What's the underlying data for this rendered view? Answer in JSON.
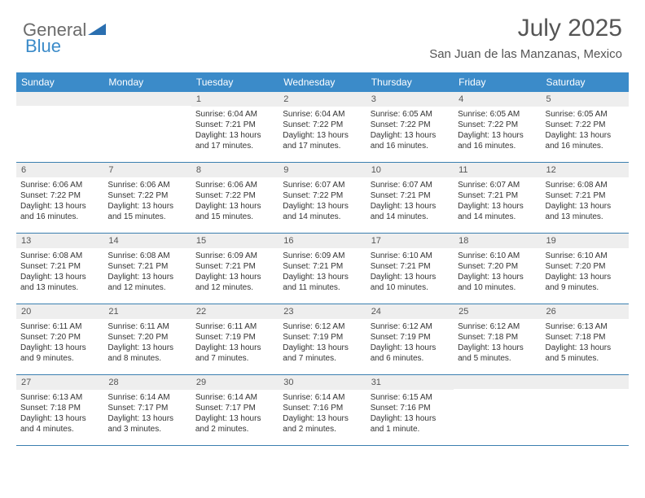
{
  "logo": {
    "general": "General",
    "blue": "Blue",
    "icon_color": "#2a6fb0"
  },
  "title": "July 2025",
  "location": "San Juan de las Manzanas, Mexico",
  "day_names": [
    "Sunday",
    "Monday",
    "Tuesday",
    "Wednesday",
    "Thursday",
    "Friday",
    "Saturday"
  ],
  "colors": {
    "header_bg": "#3b8bc9",
    "header_text": "#ffffff",
    "daynum_bg": "#eeeeee",
    "row_border": "#3b7fb0",
    "body_text": "#333333"
  },
  "weeks": [
    [
      {
        "num": "",
        "sunrise": "",
        "sunset": "",
        "daylight": ""
      },
      {
        "num": "",
        "sunrise": "",
        "sunset": "",
        "daylight": ""
      },
      {
        "num": "1",
        "sunrise": "Sunrise: 6:04 AM",
        "sunset": "Sunset: 7:21 PM",
        "daylight": "Daylight: 13 hours and 17 minutes."
      },
      {
        "num": "2",
        "sunrise": "Sunrise: 6:04 AM",
        "sunset": "Sunset: 7:22 PM",
        "daylight": "Daylight: 13 hours and 17 minutes."
      },
      {
        "num": "3",
        "sunrise": "Sunrise: 6:05 AM",
        "sunset": "Sunset: 7:22 PM",
        "daylight": "Daylight: 13 hours and 16 minutes."
      },
      {
        "num": "4",
        "sunrise": "Sunrise: 6:05 AM",
        "sunset": "Sunset: 7:22 PM",
        "daylight": "Daylight: 13 hours and 16 minutes."
      },
      {
        "num": "5",
        "sunrise": "Sunrise: 6:05 AM",
        "sunset": "Sunset: 7:22 PM",
        "daylight": "Daylight: 13 hours and 16 minutes."
      }
    ],
    [
      {
        "num": "6",
        "sunrise": "Sunrise: 6:06 AM",
        "sunset": "Sunset: 7:22 PM",
        "daylight": "Daylight: 13 hours and 16 minutes."
      },
      {
        "num": "7",
        "sunrise": "Sunrise: 6:06 AM",
        "sunset": "Sunset: 7:22 PM",
        "daylight": "Daylight: 13 hours and 15 minutes."
      },
      {
        "num": "8",
        "sunrise": "Sunrise: 6:06 AM",
        "sunset": "Sunset: 7:22 PM",
        "daylight": "Daylight: 13 hours and 15 minutes."
      },
      {
        "num": "9",
        "sunrise": "Sunrise: 6:07 AM",
        "sunset": "Sunset: 7:22 PM",
        "daylight": "Daylight: 13 hours and 14 minutes."
      },
      {
        "num": "10",
        "sunrise": "Sunrise: 6:07 AM",
        "sunset": "Sunset: 7:21 PM",
        "daylight": "Daylight: 13 hours and 14 minutes."
      },
      {
        "num": "11",
        "sunrise": "Sunrise: 6:07 AM",
        "sunset": "Sunset: 7:21 PM",
        "daylight": "Daylight: 13 hours and 14 minutes."
      },
      {
        "num": "12",
        "sunrise": "Sunrise: 6:08 AM",
        "sunset": "Sunset: 7:21 PM",
        "daylight": "Daylight: 13 hours and 13 minutes."
      }
    ],
    [
      {
        "num": "13",
        "sunrise": "Sunrise: 6:08 AM",
        "sunset": "Sunset: 7:21 PM",
        "daylight": "Daylight: 13 hours and 13 minutes."
      },
      {
        "num": "14",
        "sunrise": "Sunrise: 6:08 AM",
        "sunset": "Sunset: 7:21 PM",
        "daylight": "Daylight: 13 hours and 12 minutes."
      },
      {
        "num": "15",
        "sunrise": "Sunrise: 6:09 AM",
        "sunset": "Sunset: 7:21 PM",
        "daylight": "Daylight: 13 hours and 12 minutes."
      },
      {
        "num": "16",
        "sunrise": "Sunrise: 6:09 AM",
        "sunset": "Sunset: 7:21 PM",
        "daylight": "Daylight: 13 hours and 11 minutes."
      },
      {
        "num": "17",
        "sunrise": "Sunrise: 6:10 AM",
        "sunset": "Sunset: 7:21 PM",
        "daylight": "Daylight: 13 hours and 10 minutes."
      },
      {
        "num": "18",
        "sunrise": "Sunrise: 6:10 AM",
        "sunset": "Sunset: 7:20 PM",
        "daylight": "Daylight: 13 hours and 10 minutes."
      },
      {
        "num": "19",
        "sunrise": "Sunrise: 6:10 AM",
        "sunset": "Sunset: 7:20 PM",
        "daylight": "Daylight: 13 hours and 9 minutes."
      }
    ],
    [
      {
        "num": "20",
        "sunrise": "Sunrise: 6:11 AM",
        "sunset": "Sunset: 7:20 PM",
        "daylight": "Daylight: 13 hours and 9 minutes."
      },
      {
        "num": "21",
        "sunrise": "Sunrise: 6:11 AM",
        "sunset": "Sunset: 7:20 PM",
        "daylight": "Daylight: 13 hours and 8 minutes."
      },
      {
        "num": "22",
        "sunrise": "Sunrise: 6:11 AM",
        "sunset": "Sunset: 7:19 PM",
        "daylight": "Daylight: 13 hours and 7 minutes."
      },
      {
        "num": "23",
        "sunrise": "Sunrise: 6:12 AM",
        "sunset": "Sunset: 7:19 PM",
        "daylight": "Daylight: 13 hours and 7 minutes."
      },
      {
        "num": "24",
        "sunrise": "Sunrise: 6:12 AM",
        "sunset": "Sunset: 7:19 PM",
        "daylight": "Daylight: 13 hours and 6 minutes."
      },
      {
        "num": "25",
        "sunrise": "Sunrise: 6:12 AM",
        "sunset": "Sunset: 7:18 PM",
        "daylight": "Daylight: 13 hours and 5 minutes."
      },
      {
        "num": "26",
        "sunrise": "Sunrise: 6:13 AM",
        "sunset": "Sunset: 7:18 PM",
        "daylight": "Daylight: 13 hours and 5 minutes."
      }
    ],
    [
      {
        "num": "27",
        "sunrise": "Sunrise: 6:13 AM",
        "sunset": "Sunset: 7:18 PM",
        "daylight": "Daylight: 13 hours and 4 minutes."
      },
      {
        "num": "28",
        "sunrise": "Sunrise: 6:14 AM",
        "sunset": "Sunset: 7:17 PM",
        "daylight": "Daylight: 13 hours and 3 minutes."
      },
      {
        "num": "29",
        "sunrise": "Sunrise: 6:14 AM",
        "sunset": "Sunset: 7:17 PM",
        "daylight": "Daylight: 13 hours and 2 minutes."
      },
      {
        "num": "30",
        "sunrise": "Sunrise: 6:14 AM",
        "sunset": "Sunset: 7:16 PM",
        "daylight": "Daylight: 13 hours and 2 minutes."
      },
      {
        "num": "31",
        "sunrise": "Sunrise: 6:15 AM",
        "sunset": "Sunset: 7:16 PM",
        "daylight": "Daylight: 13 hours and 1 minute."
      },
      {
        "num": "",
        "sunrise": "",
        "sunset": "",
        "daylight": ""
      },
      {
        "num": "",
        "sunrise": "",
        "sunset": "",
        "daylight": ""
      }
    ]
  ]
}
